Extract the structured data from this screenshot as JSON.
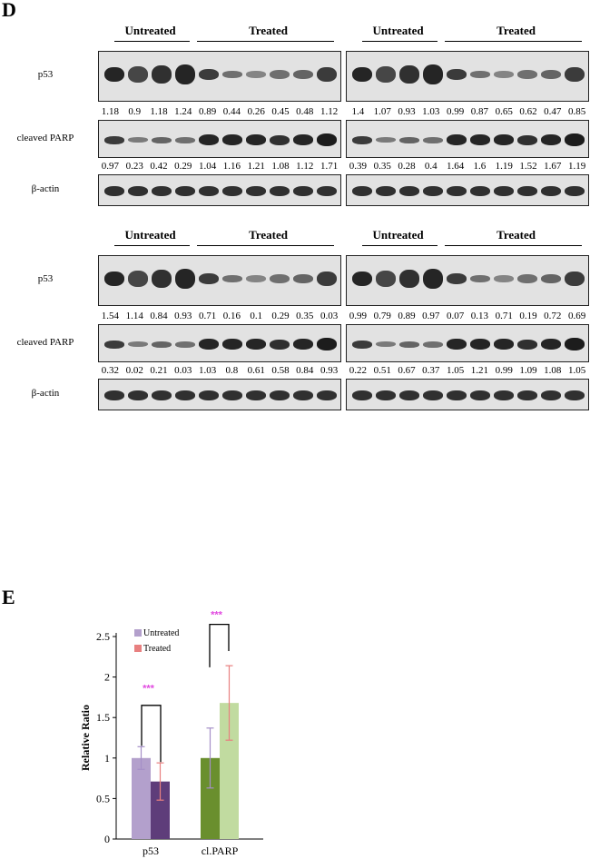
{
  "figure": {
    "panel_d_label": "D",
    "panel_e_label": "E",
    "group_labels": {
      "untreated": "Untreated",
      "treated": "Treated"
    },
    "row_labels": {
      "p53": "p53",
      "parp": "cleaved PARP",
      "actin": "β-actin"
    }
  },
  "blots": [
    {
      "p53_values": [
        "1.18",
        "0.9",
        "1.18",
        "1.24",
        "0.89",
        "0.44",
        "0.26",
        "0.45",
        "0.48",
        "1.12"
      ],
      "parp_values": [
        "0.97",
        "0.23",
        "0.42",
        "0.29",
        "1.04",
        "1.16",
        "1.21",
        "1.08",
        "1.12",
        "1.71"
      ]
    },
    {
      "p53_values": [
        "1.4",
        "1.07",
        "0.93",
        "1.03",
        "0.99",
        "0.87",
        "0.65",
        "0.62",
        "0.47",
        "0.85"
      ],
      "parp_values": [
        "0.39",
        "0.35",
        "0.28",
        "0.4",
        "1.64",
        "1.6",
        "1.19",
        "1.52",
        "1.67",
        "1.19"
      ]
    },
    {
      "p53_values": [
        "1.54",
        "1.14",
        "0.84",
        "0.93",
        "0.71",
        "0.16",
        "0.1",
        "0.29",
        "0.35",
        "0.03"
      ],
      "parp_values": [
        "0.32",
        "0.02",
        "0.21",
        "0.03",
        "1.03",
        "0.8",
        "0.61",
        "0.58",
        "0.84",
        "0.93"
      ]
    },
    {
      "p53_values": [
        "0.99",
        "0.79",
        "0.89",
        "0.97",
        "0.07",
        "0.13",
        "0.71",
        "0.19",
        "0.72",
        "0.69"
      ],
      "parp_values": [
        "0.22",
        "0.51",
        "0.67",
        "0.37",
        "1.05",
        "1.21",
        "0.99",
        "1.09",
        "1.08",
        "1.05"
      ]
    }
  ],
  "colors": {
    "untreated_p53": "#b3a0cc",
    "treated_p53": "#5e3d7a",
    "untreated_parp": "#6a8f2e",
    "treated_parp": "#c1dba0",
    "untreated_err": "#a58fc7",
    "treated_err": "#e88080",
    "significance": "#e14be0"
  },
  "chart_data": {
    "type": "bar",
    "categories": [
      "p53",
      "cl.PARP"
    ],
    "series": [
      {
        "name": "Untreated",
        "values": [
          1.0,
          1.0
        ],
        "errors": [
          0.14,
          0.37
        ]
      },
      {
        "name": "Treated",
        "values": [
          0.71,
          1.68
        ],
        "errors": [
          0.23,
          0.46
        ]
      }
    ],
    "ylabel": "Relative  Ratio",
    "ylim": [
      0,
      2.5
    ],
    "yticks": [
      "0",
      "0.5",
      "1",
      "1.5",
      "2",
      "2.5"
    ],
    "legend_placement": "top-left",
    "significance": [
      "***",
      "***"
    ]
  }
}
